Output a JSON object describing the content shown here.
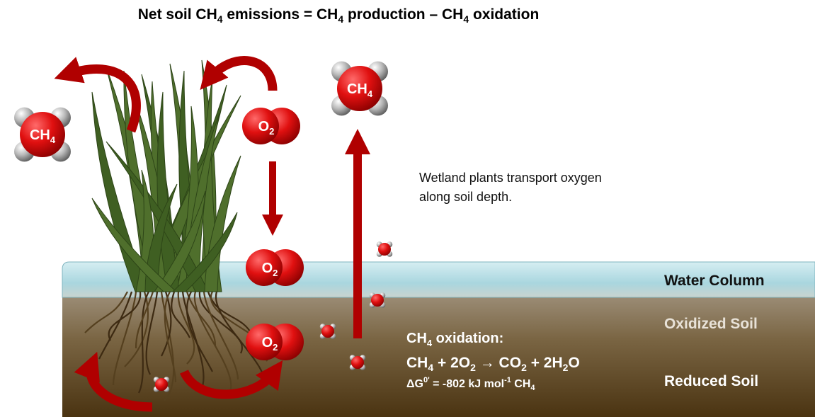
{
  "title": [
    "Net soil CH",
    "4",
    " emissions = CH",
    "4",
    " production – CH",
    "4",
    " oxidation"
  ],
  "molecules": {
    "ch4_left": [
      "CH",
      "4"
    ],
    "ch4_top": [
      "CH",
      "4"
    ],
    "o2_top": [
      "O",
      "2"
    ],
    "o2_water": [
      "O",
      "2"
    ],
    "o2_soil": [
      "O",
      "2"
    ]
  },
  "note": [
    "Wetland plants transport oxygen",
    "along soil depth."
  ],
  "layers": [
    "Water Column",
    "Oxidized Soil",
    "Reduced Soil"
  ],
  "reaction": {
    "heading": [
      "CH",
      "4",
      " oxidation:"
    ],
    "equation": [
      "CH",
      "4",
      " + 2O",
      "2",
      " → CO",
      "2",
      " + 2H",
      "2",
      "O"
    ],
    "energy": [
      "ΔG",
      "0'",
      " = -802 kJ mol",
      "-1",
      " CH",
      "4"
    ]
  }
}
